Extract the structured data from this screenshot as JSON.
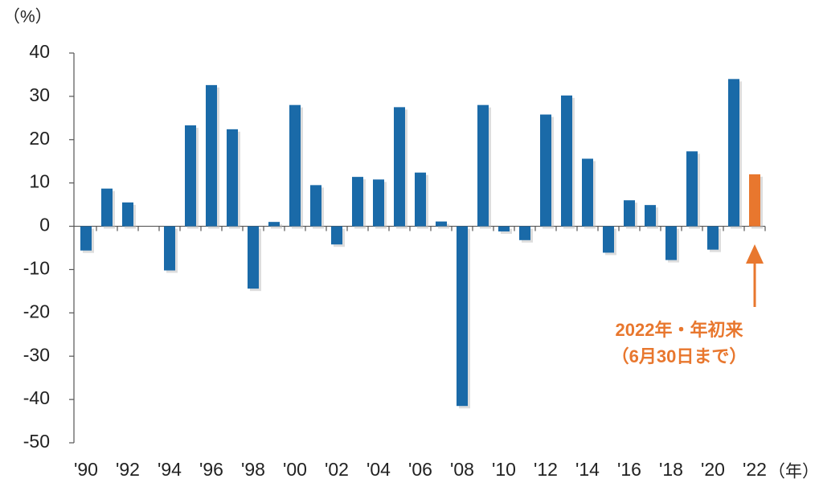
{
  "chart_data": {
    "type": "bar",
    "y_unit": "（%）",
    "x_unit": "（年）",
    "annotation": [
      "2022年・年初来",
      "（6月30日まで）"
    ],
    "categories": [
      "'90",
      null,
      "'92",
      null,
      "'94",
      null,
      "'96",
      null,
      "'98",
      null,
      "'00",
      null,
      "'02",
      null,
      "'04",
      null,
      "'06",
      null,
      "'08",
      null,
      "'10",
      null,
      "'12",
      null,
      "'14",
      null,
      "'16",
      null,
      "'18",
      null,
      "'20",
      null,
      "'22"
    ],
    "values": [
      -5.6,
      8.7,
      5.5,
      0,
      -10.2,
      23.3,
      32.6,
      22.4,
      -14.4,
      1,
      28,
      9.5,
      -4.2,
      11.4,
      10.8,
      27.5,
      12.4,
      1.1,
      -41.5,
      28,
      -1.2,
      -3.2,
      25.8,
      30.2,
      15.6,
      -6.1,
      6,
      4.9,
      -7.8,
      17.3,
      -5.4,
      34,
      12
    ],
    "colors": [
      "#1a6aa8",
      "#1a6aa8",
      "#1a6aa8",
      "#1a6aa8",
      "#1a6aa8",
      "#1a6aa8",
      "#1a6aa8",
      "#1a6aa8",
      "#1a6aa8",
      "#1a6aa8",
      "#1a6aa8",
      "#1a6aa8",
      "#1a6aa8",
      "#1a6aa8",
      "#1a6aa8",
      "#1a6aa8",
      "#1a6aa8",
      "#1a6aa8",
      "#1a6aa8",
      "#1a6aa8",
      "#1a6aa8",
      "#1a6aa8",
      "#1a6aa8",
      "#1a6aa8",
      "#1a6aa8",
      "#1a6aa8",
      "#1a6aa8",
      "#1a6aa8",
      "#1a6aa8",
      "#1a6aa8",
      "#1a6aa8",
      "#1a6aa8",
      "#e8772e"
    ],
    "annotation_color": "#e8772e",
    "ylim": [
      -50,
      40
    ],
    "yticks": [
      -50,
      -40,
      -30,
      -20,
      -10,
      0,
      10,
      20,
      30,
      40
    ],
    "grid": false
  }
}
